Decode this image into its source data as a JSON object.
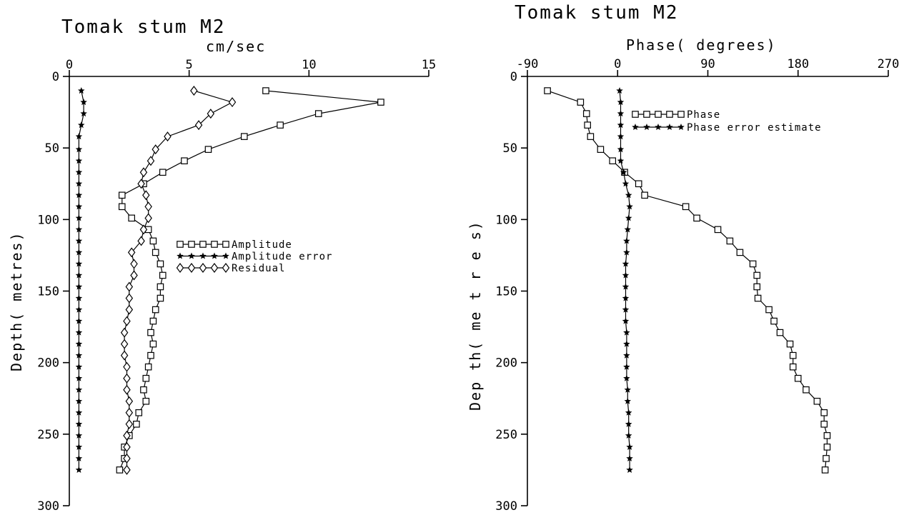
{
  "chart_data": [
    {
      "type": "line",
      "title": "Tomak stum M2",
      "xlabel": "cm/sec",
      "ylabel": "Depth( metres)",
      "xlim": [
        0,
        15
      ],
      "ylim": [
        0,
        300
      ],
      "y_inverted": true,
      "x_axis_position": "top",
      "xticks": [
        0,
        5,
        10,
        15
      ],
      "xtick_labels": [
        "0",
        "5",
        "10",
        "15"
      ],
      "yticks": [
        0,
        50,
        100,
        150,
        200,
        250,
        300
      ],
      "ytick_labels": [
        "0",
        "50",
        "100",
        "150",
        "200",
        "250",
        "300"
      ],
      "legend_position": "center-right",
      "series": [
        {
          "name": "Amplitude",
          "marker": "square",
          "points": [
            [
              8.2,
              10
            ],
            [
              13,
              18
            ],
            [
              10.4,
              26
            ],
            [
              8.8,
              34
            ],
            [
              7.3,
              42
            ],
            [
              5.8,
              51
            ],
            [
              4.8,
              59
            ],
            [
              3.9,
              67
            ],
            [
              3.1,
              75
            ],
            [
              2.2,
              83
            ],
            [
              2.2,
              91
            ],
            [
              2.6,
              99
            ],
            [
              3.3,
              107
            ],
            [
              3.5,
              115
            ],
            [
              3.6,
              123
            ],
            [
              3.8,
              131
            ],
            [
              3.9,
              139
            ],
            [
              3.8,
              147
            ],
            [
              3.8,
              155
            ],
            [
              3.6,
              163
            ],
            [
              3.5,
              171
            ],
            [
              3.4,
              179
            ],
            [
              3.5,
              187
            ],
            [
              3.4,
              195
            ],
            [
              3.3,
              203
            ],
            [
              3.2,
              211
            ],
            [
              3.1,
              219
            ],
            [
              3.2,
              227
            ],
            [
              2.9,
              235
            ],
            [
              2.8,
              243
            ],
            [
              2.5,
              251
            ],
            [
              2.3,
              259
            ],
            [
              2.3,
              267
            ],
            [
              2.1,
              275
            ]
          ]
        },
        {
          "name": "Amplitude error",
          "marker": "star",
          "points": [
            [
              0.5,
              10
            ],
            [
              0.6,
              18
            ],
            [
              0.6,
              26
            ],
            [
              0.5,
              34
            ],
            [
              0.4,
              42
            ],
            [
              0.4,
              51
            ],
            [
              0.4,
              59
            ],
            [
              0.4,
              67
            ],
            [
              0.4,
              75
            ],
            [
              0.4,
              83
            ],
            [
              0.4,
              91
            ],
            [
              0.4,
              99
            ],
            [
              0.4,
              107
            ],
            [
              0.4,
              115
            ],
            [
              0.4,
              123
            ],
            [
              0.4,
              131
            ],
            [
              0.4,
              139
            ],
            [
              0.4,
              147
            ],
            [
              0.4,
              155
            ],
            [
              0.4,
              163
            ],
            [
              0.4,
              171
            ],
            [
              0.4,
              179
            ],
            [
              0.4,
              187
            ],
            [
              0.4,
              195
            ],
            [
              0.4,
              203
            ],
            [
              0.4,
              211
            ],
            [
              0.4,
              219
            ],
            [
              0.4,
              227
            ],
            [
              0.4,
              235
            ],
            [
              0.4,
              243
            ],
            [
              0.4,
              251
            ],
            [
              0.4,
              259
            ],
            [
              0.4,
              267
            ],
            [
              0.4,
              275
            ]
          ]
        },
        {
          "name": "Residual",
          "marker": "diamond",
          "points": [
            [
              5.2,
              10
            ],
            [
              6.8,
              18
            ],
            [
              5.9,
              26
            ],
            [
              5.4,
              34
            ],
            [
              4.1,
              42
            ],
            [
              3.6,
              51
            ],
            [
              3.4,
              59
            ],
            [
              3.1,
              67
            ],
            [
              3,
              75
            ],
            [
              3.2,
              83
            ],
            [
              3.3,
              91
            ],
            [
              3.3,
              99
            ],
            [
              3.1,
              107
            ],
            [
              3,
              115
            ],
            [
              2.6,
              123
            ],
            [
              2.7,
              131
            ],
            [
              2.7,
              139
            ],
            [
              2.5,
              147
            ],
            [
              2.5,
              155
            ],
            [
              2.5,
              163
            ],
            [
              2.4,
              171
            ],
            [
              2.3,
              179
            ],
            [
              2.3,
              187
            ],
            [
              2.3,
              195
            ],
            [
              2.4,
              203
            ],
            [
              2.4,
              211
            ],
            [
              2.4,
              219
            ],
            [
              2.5,
              227
            ],
            [
              2.5,
              235
            ],
            [
              2.5,
              243
            ],
            [
              2.4,
              251
            ],
            [
              2.4,
              259
            ],
            [
              2.4,
              267
            ],
            [
              2.4,
              275
            ]
          ]
        }
      ]
    },
    {
      "type": "line",
      "title": "Tomak stum M2",
      "xlabel": "Phase( degrees)",
      "ylabel": "Dep th( me t r e s)",
      "xlim": [
        -90,
        270
      ],
      "ylim": [
        0,
        300
      ],
      "y_inverted": true,
      "x_axis_position": "top",
      "xticks": [
        -90,
        0,
        90,
        180,
        270
      ],
      "xtick_labels": [
        "-90",
        "0",
        "90",
        "180",
        "270"
      ],
      "yticks": [
        0,
        50,
        100,
        150,
        200,
        250,
        300
      ],
      "ytick_labels": [
        "0",
        "50",
        "100",
        "150",
        "200",
        "250",
        "300"
      ],
      "legend_position": "top-left",
      "series": [
        {
          "name": "Phase",
          "marker": "square",
          "points": [
            [
              -70,
              10
            ],
            [
              -37,
              18
            ],
            [
              -31,
              26
            ],
            [
              -30,
              34
            ],
            [
              -27,
              42
            ],
            [
              -17,
              51
            ],
            [
              -5,
              59
            ],
            [
              7,
              67
            ],
            [
              21,
              75
            ],
            [
              27,
              83
            ],
            [
              68,
              91
            ],
            [
              79,
              99
            ],
            [
              100,
              107
            ],
            [
              112,
              115
            ],
            [
              122,
              123
            ],
            [
              135,
              131
            ],
            [
              139,
              139
            ],
            [
              139,
              147
            ],
            [
              140,
              155
            ],
            [
              151,
              163
            ],
            [
              156,
              171
            ],
            [
              162,
              179
            ],
            [
              172,
              187
            ],
            [
              175,
              195
            ],
            [
              175,
              203
            ],
            [
              180,
              211
            ],
            [
              188,
              219
            ],
            [
              199,
              227
            ],
            [
              206,
              235
            ],
            [
              206,
              243
            ],
            [
              209,
              251
            ],
            [
              209,
              259
            ],
            [
              208,
              267
            ],
            [
              207,
              275
            ]
          ]
        },
        {
          "name": "Phase error estimate",
          "marker": "star",
          "points": [
            [
              2,
              10
            ],
            [
              3,
              18
            ],
            [
              3,
              26
            ],
            [
              3,
              34
            ],
            [
              3,
              42
            ],
            [
              3,
              51
            ],
            [
              3,
              59
            ],
            [
              6,
              67
            ],
            [
              8,
              75
            ],
            [
              11,
              83
            ],
            [
              12,
              91
            ],
            [
              11,
              99
            ],
            [
              10,
              107
            ],
            [
              9,
              115
            ],
            [
              9,
              123
            ],
            [
              8,
              131
            ],
            [
              8,
              139
            ],
            [
              8,
              147
            ],
            [
              8,
              155
            ],
            [
              8,
              163
            ],
            [
              8,
              171
            ],
            [
              9,
              179
            ],
            [
              9,
              187
            ],
            [
              9,
              195
            ],
            [
              9,
              203
            ],
            [
              9,
              211
            ],
            [
              10,
              219
            ],
            [
              10,
              227
            ],
            [
              11,
              235
            ],
            [
              11,
              243
            ],
            [
              11,
              251
            ],
            [
              12,
              259
            ],
            [
              12,
              267
            ],
            [
              12,
              275
            ]
          ]
        }
      ]
    }
  ]
}
